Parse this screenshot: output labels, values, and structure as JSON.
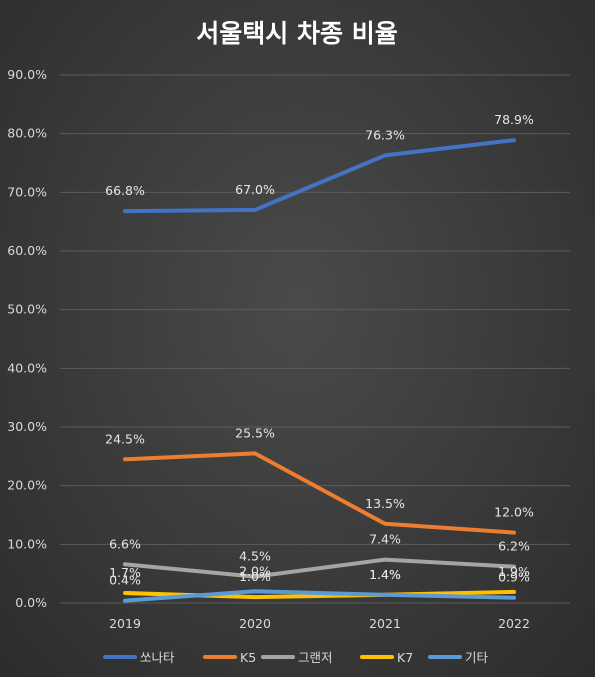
{
  "chart_data": {
    "type": "line",
    "title": "서울택시 차종 비율",
    "categories": [
      "2019",
      "2020",
      "2021",
      "2022"
    ],
    "y_ticks": [
      "0.0%",
      "10.0%",
      "20.0%",
      "30.0%",
      "40.0%",
      "50.0%",
      "60.0%",
      "70.0%",
      "80.0%",
      "90.0%"
    ],
    "ylim": [
      0,
      90
    ],
    "grid": true,
    "legend_position": "bottom",
    "series": [
      {
        "name": "쏘나타",
        "values": [
          66.8,
          67.0,
          76.3,
          78.9
        ],
        "labels": [
          "66.8%",
          "67.0%",
          "76.3%",
          "78.9%"
        ],
        "color": "#4472C4"
      },
      {
        "name": "K5",
        "values": [
          24.5,
          25.5,
          13.5,
          12.0
        ],
        "labels": [
          "24.5%",
          "25.5%",
          "13.5%",
          "12.0%"
        ],
        "color": "#ED7D31"
      },
      {
        "name": "그랜저",
        "values": [
          6.6,
          4.5,
          7.4,
          6.2
        ],
        "labels": [
          "6.6%",
          "4.5%",
          "7.4%",
          "6.2%"
        ],
        "color": "#A5A5A5"
      },
      {
        "name": "K7",
        "values": [
          1.7,
          1.0,
          1.4,
          1.9
        ],
        "labels": [
          "1.7%",
          "1.0%",
          "1.4%",
          "1.9%"
        ],
        "color": "#FFC000"
      },
      {
        "name": "기타",
        "values": [
          0.4,
          2.0,
          1.4,
          0.9
        ],
        "labels": [
          "0.4%",
          "2.0%",
          "1.4%",
          "0.9%"
        ],
        "color": "#5B9BD5"
      }
    ]
  }
}
